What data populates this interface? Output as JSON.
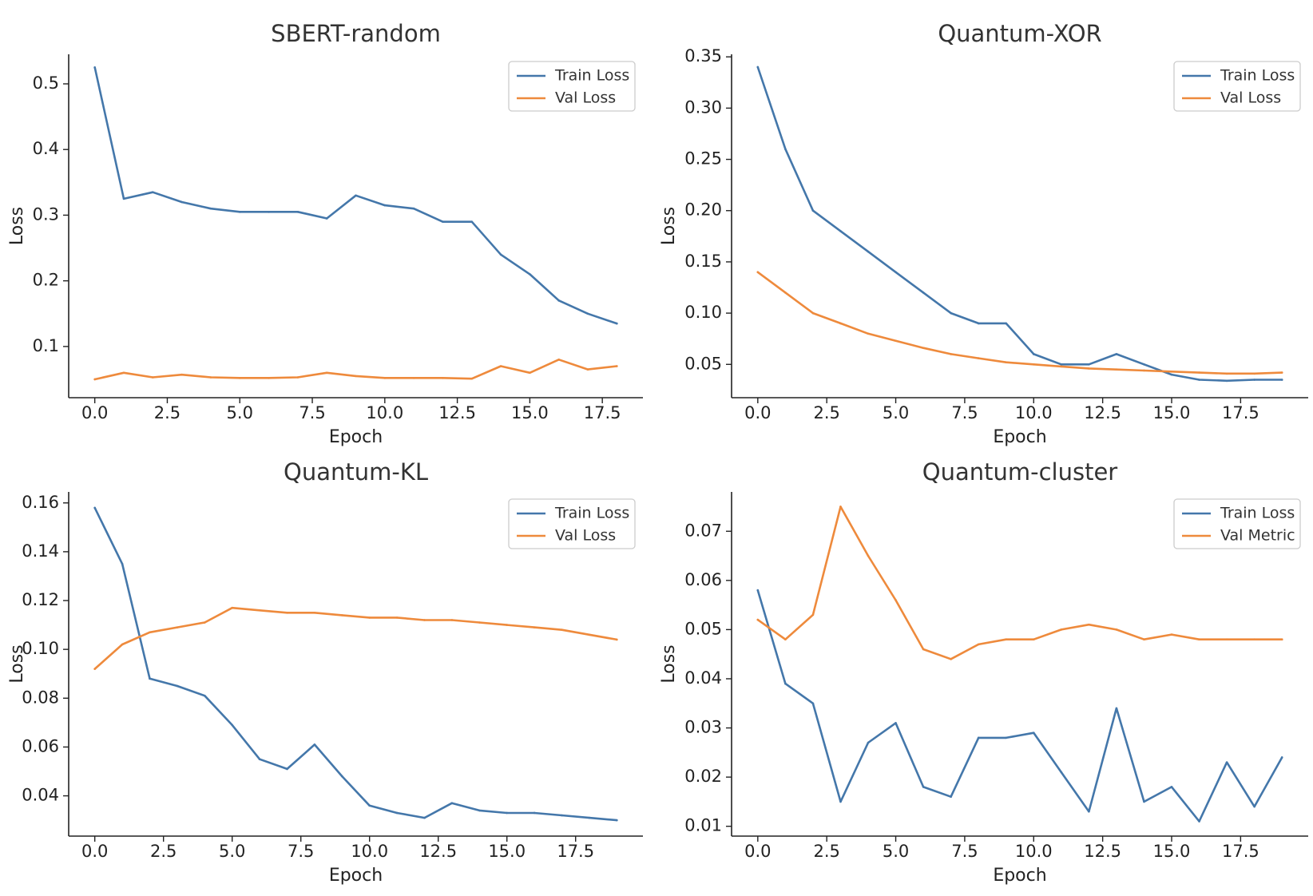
{
  "figure": {
    "xlabel": "Epoch",
    "ylabel": "Loss"
  },
  "colors": {
    "train": "#4477aa",
    "val": "#ee8a3c"
  },
  "chart_data": [
    {
      "type": "line",
      "title": "SBERT-random",
      "xlabel": "Epoch",
      "ylabel": "Loss",
      "xlim": [
        -0.9,
        18.9
      ],
      "ylim": [
        0.022,
        0.545
      ],
      "xticks": [
        0,
        2.5,
        5,
        7.5,
        10,
        12.5,
        15,
        17.5
      ],
      "xtick_labels": [
        "0.0",
        "2.5",
        "5.0",
        "7.5",
        "10.0",
        "12.5",
        "15.0",
        "17.5"
      ],
      "yticks": [
        0.1,
        0.2,
        0.3,
        0.4,
        0.5
      ],
      "ytick_labels": [
        "0.1",
        "0.2",
        "0.3",
        "0.4",
        "0.5"
      ],
      "legend": "top-right",
      "series": [
        {
          "name": "Train Loss",
          "color": "#4477aa",
          "x": [
            0,
            1,
            2,
            3,
            4,
            5,
            6,
            7,
            8,
            9,
            10,
            11,
            12,
            13,
            14,
            15,
            16,
            17,
            18
          ],
          "y": [
            0.525,
            0.325,
            0.335,
            0.32,
            0.31,
            0.305,
            0.305,
            0.305,
            0.295,
            0.33,
            0.315,
            0.31,
            0.29,
            0.29,
            0.24,
            0.21,
            0.17,
            0.15,
            0.135
          ]
        },
        {
          "name": "Val Loss",
          "color": "#ee8a3c",
          "x": [
            0,
            1,
            2,
            3,
            4,
            5,
            6,
            7,
            8,
            9,
            10,
            11,
            12,
            13,
            14,
            15,
            16,
            17,
            18
          ],
          "y": [
            0.05,
            0.06,
            0.053,
            0.057,
            0.053,
            0.052,
            0.052,
            0.053,
            0.06,
            0.055,
            0.052,
            0.052,
            0.052,
            0.051,
            0.07,
            0.06,
            0.08,
            0.065,
            0.07
          ]
        }
      ]
    },
    {
      "type": "line",
      "title": "Quantum-XOR",
      "xlabel": "Epoch",
      "ylabel": "Loss",
      "xlim": [
        -0.95,
        19.95
      ],
      "ylim": [
        0.0175,
        0.3525
      ],
      "xticks": [
        0,
        2.5,
        5,
        7.5,
        10,
        12.5,
        15,
        17.5
      ],
      "xtick_labels": [
        "0.0",
        "2.5",
        "5.0",
        "7.5",
        "10.0",
        "12.5",
        "15.0",
        "17.5"
      ],
      "yticks": [
        0.05,
        0.1,
        0.15,
        0.2,
        0.25,
        0.3,
        0.35
      ],
      "ytick_labels": [
        "0.05",
        "0.10",
        "0.15",
        "0.20",
        "0.25",
        "0.30",
        "0.35"
      ],
      "legend": "top-right",
      "series": [
        {
          "name": "Train Loss",
          "color": "#4477aa",
          "x": [
            0,
            1,
            2,
            3,
            4,
            5,
            6,
            7,
            8,
            9,
            10,
            11,
            12,
            13,
            14,
            15,
            16,
            17,
            18,
            19
          ],
          "y": [
            0.34,
            0.26,
            0.2,
            0.18,
            0.16,
            0.14,
            0.12,
            0.1,
            0.09,
            0.09,
            0.06,
            0.05,
            0.05,
            0.06,
            0.05,
            0.04,
            0.035,
            0.034,
            0.035,
            0.035
          ]
        },
        {
          "name": "Val Loss",
          "color": "#ee8a3c",
          "x": [
            0,
            1,
            2,
            3,
            4,
            5,
            6,
            7,
            8,
            9,
            10,
            11,
            12,
            13,
            14,
            15,
            16,
            17,
            18,
            19
          ],
          "y": [
            0.14,
            0.12,
            0.1,
            0.09,
            0.08,
            0.073,
            0.066,
            0.06,
            0.056,
            0.052,
            0.05,
            0.048,
            0.046,
            0.045,
            0.044,
            0.043,
            0.042,
            0.041,
            0.041,
            0.042
          ]
        }
      ]
    },
    {
      "type": "line",
      "title": "Quantum-KL",
      "xlabel": "Epoch",
      "ylabel": "Loss",
      "xlim": [
        -0.95,
        19.95
      ],
      "ylim": [
        0.0235,
        0.1645
      ],
      "xticks": [
        0,
        2.5,
        5,
        7.5,
        10,
        12.5,
        15,
        17.5
      ],
      "xtick_labels": [
        "0.0",
        "2.5",
        "5.0",
        "7.5",
        "10.0",
        "12.5",
        "15.0",
        "17.5"
      ],
      "yticks": [
        0.04,
        0.06,
        0.08,
        0.1,
        0.12,
        0.14,
        0.16
      ],
      "ytick_labels": [
        "0.04",
        "0.06",
        "0.08",
        "0.10",
        "0.12",
        "0.14",
        "0.16"
      ],
      "legend": "top-right",
      "series": [
        {
          "name": "Train Loss",
          "color": "#4477aa",
          "x": [
            0,
            1,
            2,
            3,
            4,
            5,
            6,
            7,
            8,
            9,
            10,
            11,
            12,
            13,
            14,
            15,
            16,
            17,
            18,
            19
          ],
          "y": [
            0.158,
            0.135,
            0.088,
            0.085,
            0.081,
            0.069,
            0.055,
            0.051,
            0.061,
            0.048,
            0.036,
            0.033,
            0.031,
            0.037,
            0.034,
            0.033,
            0.033,
            0.032,
            0.031,
            0.03
          ]
        },
        {
          "name": "Val Loss",
          "color": "#ee8a3c",
          "x": [
            0,
            1,
            2,
            3,
            4,
            5,
            6,
            7,
            8,
            9,
            10,
            11,
            12,
            13,
            14,
            15,
            16,
            17,
            18,
            19
          ],
          "y": [
            0.092,
            0.102,
            0.107,
            0.109,
            0.111,
            0.117,
            0.116,
            0.115,
            0.115,
            0.114,
            0.113,
            0.113,
            0.112,
            0.112,
            0.111,
            0.11,
            0.109,
            0.108,
            0.106,
            0.104
          ]
        }
      ]
    },
    {
      "type": "line",
      "title": "Quantum-cluster",
      "xlabel": "Epoch",
      "ylabel": "Loss",
      "xlim": [
        -0.95,
        19.95
      ],
      "ylim": [
        0.008,
        0.078
      ],
      "xticks": [
        0,
        2.5,
        5,
        7.5,
        10,
        12.5,
        15,
        17.5
      ],
      "xtick_labels": [
        "0.0",
        "2.5",
        "5.0",
        "7.5",
        "10.0",
        "12.5",
        "15.0",
        "17.5"
      ],
      "yticks": [
        0.01,
        0.02,
        0.03,
        0.04,
        0.05,
        0.06,
        0.07
      ],
      "ytick_labels": [
        "0.01",
        "0.02",
        "0.03",
        "0.04",
        "0.05",
        "0.06",
        "0.07"
      ],
      "legend": "top-right",
      "series": [
        {
          "name": "Train Loss",
          "color": "#4477aa",
          "x": [
            0,
            1,
            2,
            3,
            4,
            5,
            6,
            7,
            8,
            9,
            10,
            11,
            12,
            13,
            14,
            15,
            16,
            17,
            18,
            19
          ],
          "y": [
            0.058,
            0.039,
            0.035,
            0.015,
            0.027,
            0.031,
            0.018,
            0.016,
            0.028,
            0.028,
            0.029,
            0.021,
            0.013,
            0.034,
            0.015,
            0.018,
            0.011,
            0.023,
            0.014,
            0.024
          ]
        },
        {
          "name": "Val Metric",
          "color": "#ee8a3c",
          "x": [
            0,
            1,
            2,
            3,
            4,
            5,
            6,
            7,
            8,
            9,
            10,
            11,
            12,
            13,
            14,
            15,
            16,
            17,
            18,
            19
          ],
          "y": [
            0.052,
            0.048,
            0.053,
            0.075,
            0.065,
            0.056,
            0.046,
            0.044,
            0.047,
            0.048,
            0.048,
            0.05,
            0.051,
            0.05,
            0.048,
            0.049,
            0.048,
            0.048,
            0.048,
            0.048
          ]
        }
      ]
    }
  ]
}
